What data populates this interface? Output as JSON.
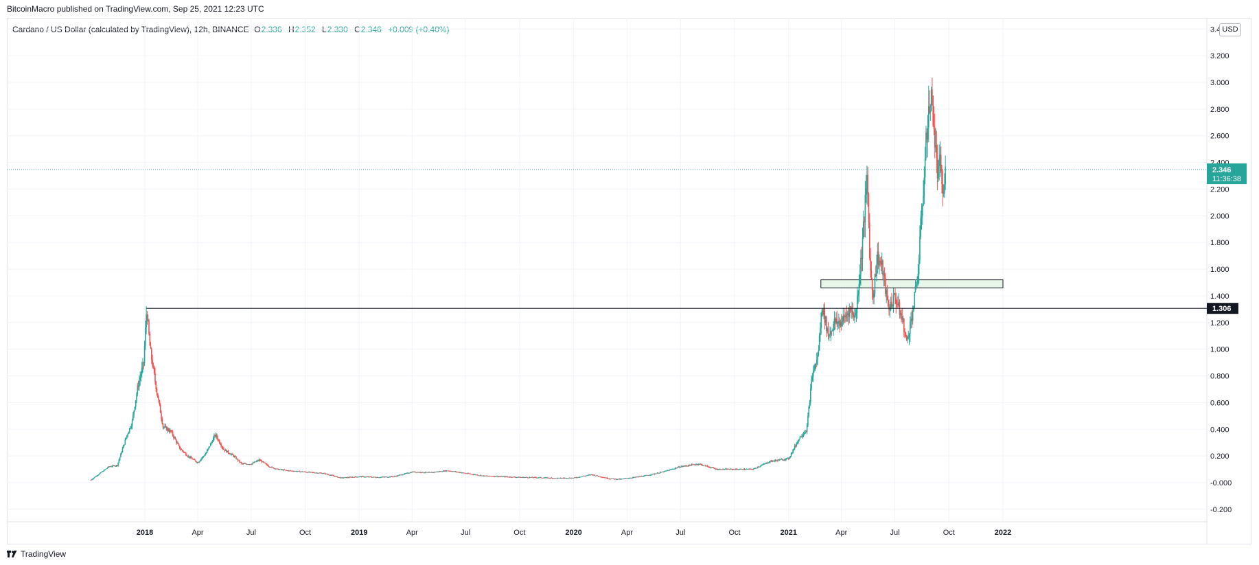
{
  "header": {
    "published": "BitcoinMacro published on TradingView.com, Sep 25, 2021 12:23 UTC"
  },
  "legend": {
    "symbol": "Cardano / US Dollar (calculated by TradingView), 12h, BINANCE",
    "open_label": "O",
    "open": "2.336",
    "high_label": "H",
    "high": "2.352",
    "low_label": "L",
    "low": "2.330",
    "close_label": "C",
    "close": "2.346",
    "change": "+0.009 (+0.40%)"
  },
  "toolbar": {
    "currency": "USD"
  },
  "footer": {
    "brand": "TradingView"
  },
  "colors": {
    "up": "#26a69a",
    "down": "#ef5350",
    "grid": "#f0f3fa",
    "axis_text": "#131722"
  },
  "chart_data": {
    "type": "candlestick",
    "title": "Cardano / US Dollar (calculated by TradingView), 12h, BINANCE",
    "ylim": [
      -0.28,
      3.4
    ],
    "y_ticks": [
      "3.400",
      "3.200",
      "3.000",
      "2.800",
      "2.600",
      "2.400",
      "2.200",
      "2.000",
      "1.800",
      "1.600",
      "1.400",
      "1.200",
      "1.000",
      "0.800",
      "0.600",
      "0.400",
      "0.200",
      "-0.000",
      "-0.200"
    ],
    "x_ticks": [
      {
        "label": "2018",
        "date": "2018-01-01",
        "bold": true
      },
      {
        "label": "Apr",
        "date": "2018-04-01"
      },
      {
        "label": "Jul",
        "date": "2018-07-01"
      },
      {
        "label": "Oct",
        "date": "2018-10-01"
      },
      {
        "label": "2019",
        "date": "2019-01-01",
        "bold": true
      },
      {
        "label": "Apr",
        "date": "2019-04-01"
      },
      {
        "label": "Jul",
        "date": "2019-07-01"
      },
      {
        "label": "Oct",
        "date": "2019-10-01"
      },
      {
        "label": "2020",
        "date": "2020-01-01",
        "bold": true
      },
      {
        "label": "Apr",
        "date": "2020-04-01"
      },
      {
        "label": "Jul",
        "date": "2020-07-01"
      },
      {
        "label": "Oct",
        "date": "2020-10-01"
      },
      {
        "label": "2021",
        "date": "2021-01-01",
        "bold": true
      },
      {
        "label": "Apr",
        "date": "2021-04-01"
      },
      {
        "label": "Jul",
        "date": "2021-07-01"
      },
      {
        "label": "Oct",
        "date": "2021-10-01"
      },
      {
        "label": "2022",
        "date": "2022-01-01",
        "bold": true
      }
    ],
    "price_series": [
      [
        "2017-10-01",
        0.02
      ],
      [
        "2017-11-01",
        0.12
      ],
      [
        "2017-11-15",
        0.13
      ],
      [
        "2017-12-01",
        0.35
      ],
      [
        "2017-12-10",
        0.45
      ],
      [
        "2017-12-20",
        0.72
      ],
      [
        "2017-12-30",
        0.9
      ],
      [
        "2018-01-04",
        1.306
      ],
      [
        "2018-01-10",
        1.0
      ],
      [
        "2018-01-20",
        0.72
      ],
      [
        "2018-02-01",
        0.42
      ],
      [
        "2018-02-15",
        0.38
      ],
      [
        "2018-03-01",
        0.26
      ],
      [
        "2018-03-15",
        0.2
      ],
      [
        "2018-04-01",
        0.15
      ],
      [
        "2018-04-15",
        0.22
      ],
      [
        "2018-05-01",
        0.36
      ],
      [
        "2018-05-15",
        0.25
      ],
      [
        "2018-06-01",
        0.2
      ],
      [
        "2018-06-15",
        0.14
      ],
      [
        "2018-07-01",
        0.14
      ],
      [
        "2018-07-15",
        0.17
      ],
      [
        "2018-08-01",
        0.12
      ],
      [
        "2018-08-15",
        0.1
      ],
      [
        "2018-09-01",
        0.09
      ],
      [
        "2018-10-01",
        0.08
      ],
      [
        "2018-11-01",
        0.07
      ],
      [
        "2018-12-01",
        0.035
      ],
      [
        "2019-01-01",
        0.045
      ],
      [
        "2019-02-01",
        0.04
      ],
      [
        "2019-03-01",
        0.045
      ],
      [
        "2019-04-01",
        0.08
      ],
      [
        "2019-05-01",
        0.075
      ],
      [
        "2019-06-01",
        0.09
      ],
      [
        "2019-07-01",
        0.07
      ],
      [
        "2019-08-01",
        0.05
      ],
      [
        "2019-09-01",
        0.045
      ],
      [
        "2019-10-01",
        0.04
      ],
      [
        "2019-11-01",
        0.038
      ],
      [
        "2019-12-01",
        0.033
      ],
      [
        "2020-01-01",
        0.035
      ],
      [
        "2020-02-01",
        0.06
      ],
      [
        "2020-03-01",
        0.03
      ],
      [
        "2020-03-20",
        0.025
      ],
      [
        "2020-04-01",
        0.032
      ],
      [
        "2020-05-01",
        0.05
      ],
      [
        "2020-06-01",
        0.08
      ],
      [
        "2020-07-01",
        0.12
      ],
      [
        "2020-08-01",
        0.14
      ],
      [
        "2020-09-01",
        0.1
      ],
      [
        "2020-10-01",
        0.1
      ],
      [
        "2020-11-01",
        0.1
      ],
      [
        "2020-12-01",
        0.16
      ],
      [
        "2021-01-01",
        0.18
      ],
      [
        "2021-01-20",
        0.34
      ],
      [
        "2021-02-01",
        0.4
      ],
      [
        "2021-02-10",
        0.8
      ],
      [
        "2021-02-20",
        0.95
      ],
      [
        "2021-02-27",
        1.33
      ],
      [
        "2021-03-10",
        1.1
      ],
      [
        "2021-03-20",
        1.2
      ],
      [
        "2021-04-01",
        1.2
      ],
      [
        "2021-04-15",
        1.3
      ],
      [
        "2021-04-25",
        1.25
      ],
      [
        "2021-05-05",
        1.7
      ],
      [
        "2021-05-15",
        2.3
      ],
      [
        "2021-05-20",
        1.6
      ],
      [
        "2021-05-25",
        1.4
      ],
      [
        "2021-06-01",
        1.7
      ],
      [
        "2021-06-10",
        1.6
      ],
      [
        "2021-06-20",
        1.3
      ],
      [
        "2021-07-01",
        1.4
      ],
      [
        "2021-07-15",
        1.2
      ],
      [
        "2021-07-21",
        1.05
      ],
      [
        "2021-08-01",
        1.3
      ],
      [
        "2021-08-10",
        1.6
      ],
      [
        "2021-08-15",
        2.0
      ],
      [
        "2021-08-20",
        2.3
      ],
      [
        "2021-08-25",
        2.7
      ],
      [
        "2021-09-02",
        2.9
      ],
      [
        "2021-09-08",
        2.5
      ],
      [
        "2021-09-12",
        2.3
      ],
      [
        "2021-09-17",
        2.4
      ],
      [
        "2021-09-21",
        2.1
      ],
      [
        "2021-09-25",
        2.346
      ]
    ],
    "last_price": {
      "value": 2.346,
      "label": "2.346",
      "countdown": "11:36:38"
    },
    "horizontal_line": {
      "value": 1.306,
      "label": "1.306",
      "from_date": "2018-01-04"
    },
    "zone": {
      "from_date": "2021-02-25",
      "to_date": "2022-01-01",
      "low": 1.46,
      "high": 1.52
    }
  }
}
